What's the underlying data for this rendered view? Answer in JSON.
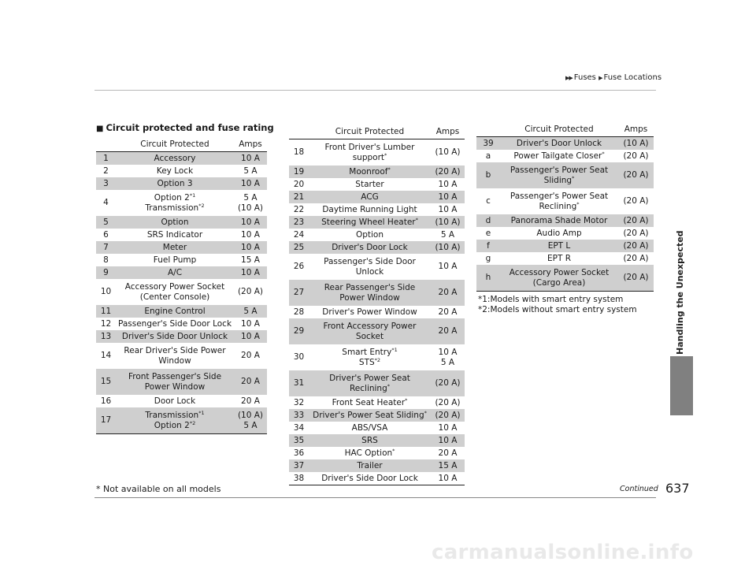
{
  "header": {
    "breadcrumb": [
      "Fuses",
      "Fuse Locations"
    ],
    "side_tab": "Handling the Unexpected"
  },
  "section": {
    "title": "Circuit protected and fuse rating"
  },
  "columns": {
    "circuit": "Circuit Protected",
    "amps": "Amps"
  },
  "tables": [
    [
      {
        "no": "1",
        "circuit": [
          "Accessory"
        ],
        "amps": [
          "10 A"
        ],
        "shaded": true
      },
      {
        "no": "2",
        "circuit": [
          "Key Lock"
        ],
        "amps": [
          "5 A"
        ],
        "shaded": false
      },
      {
        "no": "3",
        "circuit": [
          "Option 3"
        ],
        "amps": [
          "10 A"
        ],
        "shaded": true
      },
      {
        "no": "4",
        "circuit": [
          "Option 2*1",
          "Transmission*2"
        ],
        "amps": [
          "5 A",
          "(10 A)"
        ],
        "shaded": false
      },
      {
        "no": "5",
        "circuit": [
          "Option"
        ],
        "amps": [
          "10 A"
        ],
        "shaded": true
      },
      {
        "no": "6",
        "circuit": [
          "SRS Indicator"
        ],
        "amps": [
          "10 A"
        ],
        "shaded": false
      },
      {
        "no": "7",
        "circuit": [
          "Meter"
        ],
        "amps": [
          "10 A"
        ],
        "shaded": true
      },
      {
        "no": "8",
        "circuit": [
          "Fuel Pump"
        ],
        "amps": [
          "15 A"
        ],
        "shaded": false
      },
      {
        "no": "9",
        "circuit": [
          "A/C"
        ],
        "amps": [
          "10 A"
        ],
        "shaded": true
      },
      {
        "no": "10",
        "circuit": [
          "Accessory Power Socket",
          "(Center Console)"
        ],
        "amps": [
          "(20 A)"
        ],
        "shaded": false
      },
      {
        "no": "11",
        "circuit": [
          "Engine Control"
        ],
        "amps": [
          "5 A"
        ],
        "shaded": true
      },
      {
        "no": "12",
        "circuit": [
          "Passenger's Side Door Lock"
        ],
        "amps": [
          "10 A"
        ],
        "shaded": false
      },
      {
        "no": "13",
        "circuit": [
          "Driver's Side Door Unlock"
        ],
        "amps": [
          "10 A"
        ],
        "shaded": true
      },
      {
        "no": "14",
        "circuit": [
          "Rear Driver's Side Power",
          "Window"
        ],
        "amps": [
          "20 A"
        ],
        "shaded": false
      },
      {
        "no": "15",
        "circuit": [
          "Front Passenger's Side",
          "Power Window"
        ],
        "amps": [
          "20 A"
        ],
        "shaded": true
      },
      {
        "no": "16",
        "circuit": [
          "Door Lock"
        ],
        "amps": [
          "20 A"
        ],
        "shaded": false
      },
      {
        "no": "17",
        "circuit": [
          "Transmission*1",
          "Option 2*2"
        ],
        "amps": [
          "(10 A)",
          "5 A"
        ],
        "shaded": true
      }
    ],
    [
      {
        "no": "18",
        "circuit": [
          "Front Driver's Lumber",
          "support*"
        ],
        "amps": [
          "(10 A)"
        ],
        "shaded": false
      },
      {
        "no": "19",
        "circuit": [
          "Moonroof*"
        ],
        "amps": [
          "(20 A)"
        ],
        "shaded": true
      },
      {
        "no": "20",
        "circuit": [
          "Starter"
        ],
        "amps": [
          "10 A"
        ],
        "shaded": false
      },
      {
        "no": "21",
        "circuit": [
          "ACG"
        ],
        "amps": [
          "10 A"
        ],
        "shaded": true
      },
      {
        "no": "22",
        "circuit": [
          "Daytime Running Light"
        ],
        "amps": [
          "10 A"
        ],
        "shaded": false
      },
      {
        "no": "23",
        "circuit": [
          "Steering Wheel Heater*"
        ],
        "amps": [
          "(10 A)"
        ],
        "shaded": true
      },
      {
        "no": "24",
        "circuit": [
          "Option"
        ],
        "amps": [
          "5 A"
        ],
        "shaded": false
      },
      {
        "no": "25",
        "circuit": [
          "Driver's Door Lock"
        ],
        "amps": [
          "(10 A)"
        ],
        "shaded": true
      },
      {
        "no": "26",
        "circuit": [
          "Passenger's Side Door",
          "Unlock"
        ],
        "amps": [
          "10 A"
        ],
        "shaded": false
      },
      {
        "no": "27",
        "circuit": [
          "Rear Passenger's Side",
          "Power Window"
        ],
        "amps": [
          "20 A"
        ],
        "shaded": true
      },
      {
        "no": "28",
        "circuit": [
          "Driver's Power Window"
        ],
        "amps": [
          "20 A"
        ],
        "shaded": false
      },
      {
        "no": "29",
        "circuit": [
          "Front Accessory Power",
          "Socket"
        ],
        "amps": [
          "20 A"
        ],
        "shaded": true
      },
      {
        "no": "30",
        "circuit": [
          "Smart Entry*1",
          "STS*2"
        ],
        "amps": [
          "10 A",
          "5 A"
        ],
        "shaded": false
      },
      {
        "no": "31",
        "circuit": [
          "Driver's Power Seat",
          "Reclining*"
        ],
        "amps": [
          "(20 A)"
        ],
        "shaded": true
      },
      {
        "no": "32",
        "circuit": [
          "Front Seat Heater*"
        ],
        "amps": [
          "(20 A)"
        ],
        "shaded": false
      },
      {
        "no": "33",
        "circuit": [
          "Driver's Power Seat Sliding*"
        ],
        "amps": [
          "(20 A)"
        ],
        "shaded": true
      },
      {
        "no": "34",
        "circuit": [
          "ABS/VSA"
        ],
        "amps": [
          "10 A"
        ],
        "shaded": false
      },
      {
        "no": "35",
        "circuit": [
          "SRS"
        ],
        "amps": [
          "10 A"
        ],
        "shaded": true
      },
      {
        "no": "36",
        "circuit": [
          "HAC Option*"
        ],
        "amps": [
          "20 A"
        ],
        "shaded": false
      },
      {
        "no": "37",
        "circuit": [
          "Trailer"
        ],
        "amps": [
          "15 A"
        ],
        "shaded": true
      },
      {
        "no": "38",
        "circuit": [
          "Driver's Side Door Lock"
        ],
        "amps": [
          "10 A"
        ],
        "shaded": false
      }
    ],
    [
      {
        "no": "39",
        "circuit": [
          "Driver's Door Unlock"
        ],
        "amps": [
          "(10 A)"
        ],
        "shaded": true
      },
      {
        "no": "a",
        "circuit": [
          "Power Tailgate Closer*"
        ],
        "amps": [
          "(20 A)"
        ],
        "shaded": false
      },
      {
        "no": "b",
        "circuit": [
          "Passenger's Power Seat",
          "Sliding*"
        ],
        "amps": [
          "(20 A)"
        ],
        "shaded": true
      },
      {
        "no": "c",
        "circuit": [
          "Passenger's Power Seat",
          "Reclining*"
        ],
        "amps": [
          "(20 A)"
        ],
        "shaded": false
      },
      {
        "no": "d",
        "circuit": [
          "Panorama Shade Motor"
        ],
        "amps": [
          "(20 A)"
        ],
        "shaded": true
      },
      {
        "no": "e",
        "circuit": [
          "Audio Amp"
        ],
        "amps": [
          "(20 A)"
        ],
        "shaded": false
      },
      {
        "no": "f",
        "circuit": [
          "EPT L"
        ],
        "amps": [
          "(20 A)"
        ],
        "shaded": true
      },
      {
        "no": "g",
        "circuit": [
          "EPT R"
        ],
        "amps": [
          "(20 A)"
        ],
        "shaded": false
      },
      {
        "no": "h",
        "circuit": [
          "Accessory Power Socket",
          "(Cargo Area)"
        ],
        "amps": [
          "(20 A)"
        ],
        "shaded": true
      }
    ]
  ],
  "notes": [
    "*1:Models with smart entry system",
    "*2:Models without smart entry system"
  ],
  "footer": {
    "footnote": "* Not available on all models",
    "continued": "Continued",
    "page_number": "637",
    "watermark": "carmanualsonline.info"
  },
  "colors": {
    "row_shade": "#cfcfcf",
    "side_tab": "#808080"
  }
}
